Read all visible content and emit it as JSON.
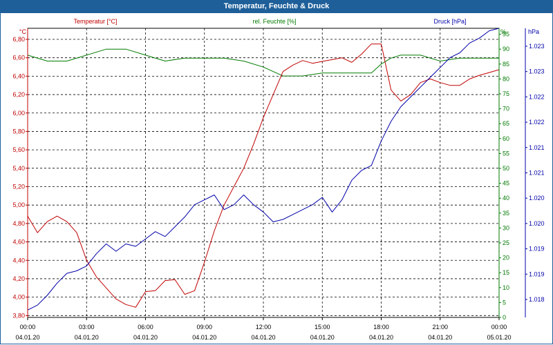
{
  "window": {
    "title": "Temperatur, Feuchte & Druck"
  },
  "chart_data": {
    "type": "line",
    "title": "Temperatur, Feuchte & Druck",
    "grid": true,
    "x_axis": {
      "range": [
        "2020-01-04 00:00",
        "2020-01-05 00:00"
      ],
      "tick_times": [
        "00:00",
        "03:00",
        "06:00",
        "09:00",
        "12:00",
        "15:00",
        "18:00",
        "21:00",
        "00:00"
      ],
      "tick_dates": [
        "04.01.20",
        "04.01.20",
        "04.01.20",
        "04.01.20",
        "04.01.20",
        "04.01.20",
        "04.01.20",
        "04.01.20",
        "05.01.20"
      ]
    },
    "axes": {
      "temperature": {
        "label": "Temperatur [°C]",
        "unit": "°C",
        "range": [
          3.78,
          6.92
        ],
        "ticks": [
          "3,80",
          "4,00",
          "4,20",
          "4,40",
          "4,60",
          "4,80",
          "5,00",
          "5,20",
          "5,40",
          "5,60",
          "5,80",
          "6,00",
          "6,20",
          "6,40",
          "6,60",
          "6,80"
        ],
        "color": "#c00000"
      },
      "humidity": {
        "label": "rel. Feuchte [%]",
        "unit": "%",
        "range": [
          0,
          97
        ],
        "ticks": [
          "0",
          "5",
          "10",
          "15",
          "20",
          "25",
          "30",
          "35",
          "40",
          "45",
          "50",
          "55",
          "60",
          "65",
          "70",
          "75",
          "80",
          "85",
          "90",
          "95"
        ],
        "color": "#007a00"
      },
      "pressure": {
        "label": "Druck [hPa]",
        "unit": "hPa",
        "range": [
          1.0176,
          1.0235
        ],
        "ticks": [
          "1.018",
          "1.019",
          "1.019",
          "1.020",
          "1.020",
          "1.021",
          "1.021",
          "1.022",
          "1.022",
          "1.023",
          "1.023"
        ],
        "color": "#0000aa"
      }
    },
    "series": [
      {
        "name": "Temperatur [°C]",
        "axis": "temperature",
        "color": "#c00000",
        "x": [
          0,
          0.5,
          1,
          1.5,
          2,
          2.5,
          3,
          3.5,
          4,
          4.5,
          5,
          5.5,
          6,
          6.5,
          7,
          7.5,
          8,
          8.5,
          9,
          9.5,
          10,
          10.5,
          11,
          11.5,
          12,
          12.5,
          13,
          13.5,
          14,
          14.5,
          15,
          15.5,
          16,
          16.5,
          17,
          17.5,
          18,
          18.5,
          19,
          19.5,
          20,
          20.5,
          21,
          21.5,
          22,
          22.5,
          23,
          23.5,
          24
        ],
        "values": [
          4.88,
          4.7,
          4.82,
          4.88,
          4.82,
          4.7,
          4.4,
          4.22,
          4.1,
          3.98,
          3.92,
          3.89,
          4.06,
          4.07,
          4.18,
          4.19,
          4.03,
          4.07,
          4.38,
          4.72,
          5.0,
          5.2,
          5.4,
          5.66,
          5.95,
          6.2,
          6.45,
          6.52,
          6.57,
          6.54,
          6.56,
          6.58,
          6.6,
          6.55,
          6.64,
          6.75,
          6.75,
          6.25,
          6.13,
          6.2,
          6.33,
          6.37,
          6.33,
          6.3,
          6.3,
          6.37,
          6.41,
          6.44,
          6.47
        ]
      },
      {
        "name": "rel. Feuchte [%]",
        "axis": "humidity",
        "color": "#007a00",
        "x": [
          0,
          1,
          2,
          3,
          4,
          5,
          6,
          7,
          8,
          9,
          10,
          11,
          12,
          13,
          14,
          15,
          16,
          17,
          17.5,
          18,
          18.5,
          19,
          20,
          21,
          22,
          23,
          24
        ],
        "values": [
          88,
          86,
          86,
          88,
          90,
          90,
          88,
          86,
          87,
          87,
          87,
          86,
          84,
          81,
          81,
          82,
          82,
          82,
          82,
          85,
          87,
          88,
          88,
          86,
          87,
          87,
          87
        ]
      },
      {
        "name": "Druck [hPa]",
        "axis": "pressure",
        "color": "#0000aa",
        "x": [
          0,
          0.5,
          1,
          1.5,
          2,
          2.5,
          3,
          3.5,
          4,
          4.5,
          5,
          5.5,
          6,
          6.5,
          7,
          7.5,
          8,
          8.5,
          9,
          9.5,
          10,
          10.5,
          11,
          11.5,
          12,
          12.5,
          13,
          13.5,
          14,
          14.5,
          15,
          15.5,
          16,
          16.5,
          17,
          17.5,
          18,
          18.5,
          19,
          19.5,
          20,
          20.5,
          21,
          21.5,
          22,
          22.5,
          23,
          23.5,
          24
        ],
        "values": [
          1.01775,
          1.01785,
          1.01805,
          1.0183,
          1.0185,
          1.01855,
          1.01865,
          1.0189,
          1.0191,
          1.01895,
          1.0191,
          1.01905,
          1.0192,
          1.01935,
          1.01925,
          1.01945,
          1.01965,
          1.0199,
          1.02,
          1.0201,
          1.0198,
          1.0199,
          1.0201,
          1.0199,
          1.01975,
          1.01955,
          1.0196,
          1.0197,
          1.0198,
          1.0199,
          1.02005,
          1.01975,
          1.02,
          1.0204,
          1.0206,
          1.0207,
          1.0212,
          1.0216,
          1.0219,
          1.0221,
          1.0223,
          1.0225,
          1.0227,
          1.0229,
          1.023,
          1.0232,
          1.0233,
          1.02345,
          1.0235
        ]
      }
    ]
  }
}
